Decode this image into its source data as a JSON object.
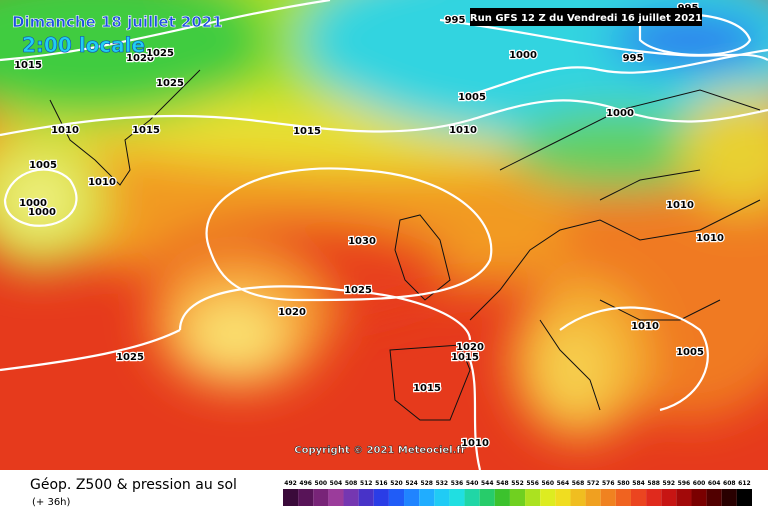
{
  "header": {
    "title": "Dimanche 18 juillet 2021",
    "time": "2:00 locale",
    "run": "Run GFS 12 Z du Vendredi 16 juillet 2021"
  },
  "copyright": "Copyright © 2021 Meteociel.fr",
  "footer": {
    "title": "Géop. Z500 & pression au sol",
    "subtitle": "(+ 36h)"
  },
  "isobars": [
    "995",
    "1000",
    "995",
    "1015",
    "1020",
    "1025",
    "1025",
    "1005",
    "1010",
    "1015",
    "1015",
    "1010",
    "1000",
    "1005",
    "1010",
    "1000",
    "1000",
    "1010",
    "1010",
    "1030",
    "1025",
    "1020",
    "1010",
    "1025",
    "1020",
    "1015",
    "1005",
    "1015",
    "1010",
    "995"
  ],
  "legend": {
    "ticks": [
      492,
      496,
      500,
      504,
      508,
      512,
      516,
      520,
      524,
      528,
      532,
      536,
      540,
      544,
      548,
      552,
      556,
      560,
      564,
      568,
      572,
      576,
      580,
      584,
      588,
      592,
      596,
      600,
      604,
      608,
      612
    ]
  }
}
